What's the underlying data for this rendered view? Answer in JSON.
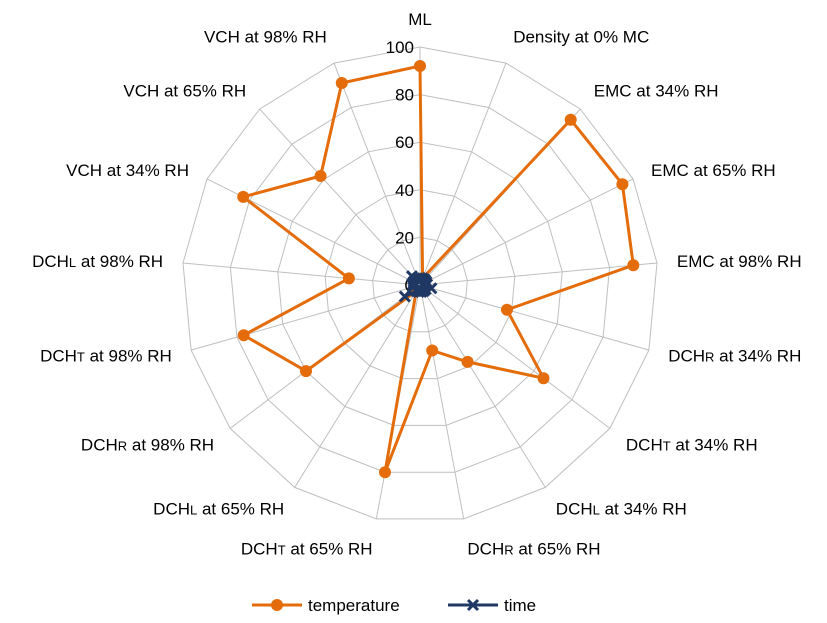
{
  "chart_data": {
    "type": "radar",
    "categories": [
      "ML",
      "Density at 0% MC",
      "EMC at 34% RH",
      "EMC at 65% RH",
      "EMC at 98% RH",
      "DCHR at 34% RH",
      "DCHT at 34% RH",
      "DCHL at 34% RH",
      "DCHR at 65% RH",
      "DCHT at 65% RH",
      "DCHL at 65% RH",
      "DCHR at 98% RH",
      "DCHT at 98% RH",
      "DCHL at 98% RH",
      "VCH at 34% RH",
      "VCH at 65% RH",
      "VCH at 98% RH"
    ],
    "category_labels": [
      {
        "main": "ML",
        "sub": "",
        "suffix": ""
      },
      {
        "main": "Density at 0% MC",
        "sub": "",
        "suffix": ""
      },
      {
        "main": "EMC at 34% RH",
        "sub": "",
        "suffix": ""
      },
      {
        "main": "EMC at 65% RH",
        "sub": "",
        "suffix": ""
      },
      {
        "main": "EMC at 98% RH",
        "sub": "",
        "suffix": ""
      },
      {
        "main": "DCH",
        "sub": "R",
        "suffix": " at 34% RH"
      },
      {
        "main": "DCH",
        "sub": "T",
        "suffix": " at 34% RH"
      },
      {
        "main": "DCH",
        "sub": "L",
        "suffix": " at 34% RH"
      },
      {
        "main": "DCH",
        "sub": "R",
        "suffix": " at 65% RH"
      },
      {
        "main": "DCH",
        "sub": "T",
        "suffix": " at 65% RH"
      },
      {
        "main": "DCH",
        "sub": "L",
        "suffix": " at 65% RH"
      },
      {
        "main": "DCH",
        "sub": "R",
        "suffix": " at 98% RH"
      },
      {
        "main": "DCH",
        "sub": "T",
        "suffix": " at 98% RH"
      },
      {
        "main": "DCH",
        "sub": "L",
        "suffix": " at 98% RH"
      },
      {
        "main": "VCH at 34% RH",
        "sub": "",
        "suffix": ""
      },
      {
        "main": "VCH at 65% RH",
        "sub": "",
        "suffix": ""
      },
      {
        "main": "VCH at 98% RH",
        "sub": "",
        "suffix": ""
      }
    ],
    "series": [
      {
        "name": "temperature",
        "color": "#E46C0A",
        "marker": "circle",
        "values": [
          92,
          3,
          94,
          95,
          90,
          38,
          65,
          38,
          28,
          80,
          3,
          60,
          77,
          30,
          83,
          62,
          91
        ]
      },
      {
        "name": "time",
        "color": "#1F3864",
        "marker": "x",
        "values": [
          3,
          3,
          3,
          3,
          3,
          5,
          3,
          3,
          3,
          3,
          3,
          8,
          3,
          3,
          3,
          5,
          3
        ]
      }
    ],
    "rlim": [
      0,
      100
    ],
    "ticks": [
      "0",
      "20",
      "40",
      "60",
      "80",
      "100"
    ],
    "tick_values": [
      0,
      20,
      40,
      60,
      80,
      100
    ],
    "grid": true,
    "legend_position": "bottom"
  }
}
